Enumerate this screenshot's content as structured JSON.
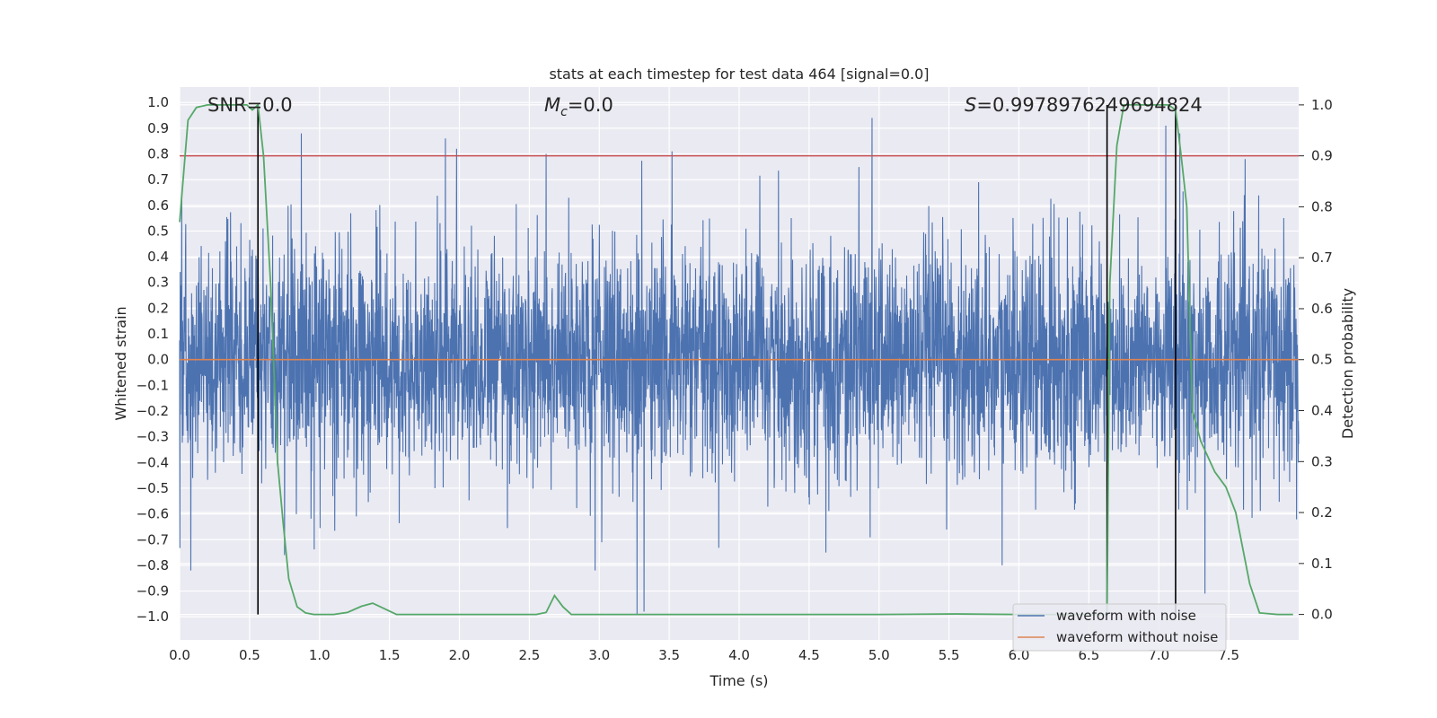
{
  "chart_data": {
    "type": "line",
    "title": "stats at each timestep for test data 464 [signal=0.0]",
    "xlabel": "Time (s)",
    "ylabel_left": "Whitened strain",
    "ylabel_right": "Detection probability",
    "xlim": [
      0.0,
      8.0
    ],
    "ylim_left": [
      -1.09,
      1.06
    ],
    "ylim_right": [
      -0.05,
      1.035
    ],
    "x_ticks": [
      "0.0",
      "0.5",
      "1.0",
      "1.5",
      "2.0",
      "2.5",
      "3.0",
      "3.5",
      "4.0",
      "4.5",
      "5.0",
      "5.5",
      "6.0",
      "6.5",
      "7.0",
      "7.5"
    ],
    "y_left_ticks": [
      "1.0",
      "0.9",
      "0.8",
      "0.7",
      "0.6",
      "0.5",
      "0.4",
      "0.3",
      "0.2",
      "0.1",
      "0.0",
      "−0.1",
      "−0.2",
      "−0.3",
      "−0.4",
      "−0.5",
      "−0.6",
      "−0.7",
      "−0.8",
      "−0.9",
      "−1.0"
    ],
    "y_right_ticks": [
      "1.0",
      "0.9",
      "0.8",
      "0.7",
      "0.6",
      "0.5",
      "0.4",
      "0.3",
      "0.2",
      "0.1",
      "0.0"
    ],
    "grid": true,
    "background": "#eaeaf2",
    "legend_placement": "lower-right",
    "annotations": {
      "snr": "SNR=0.0",
      "mc_symbol": "M",
      "mc_sub": "c",
      "mc_value": "=0.0",
      "s_symbol": "S",
      "s_value": "=0.9978976249694824"
    },
    "threshold": {
      "value": 0.9,
      "axis": "right",
      "color": "#c44e52"
    },
    "vertical_markers": [
      0.56,
      6.63,
      7.12
    ],
    "series": [
      {
        "name": "waveform with noise",
        "axis": "left",
        "color": "#4c72b0",
        "kind": "noise",
        "sigma": 0.22,
        "duration": 8.0,
        "spikes": [
          [
            0.87,
            0.88
          ],
          [
            1.9,
            0.86
          ],
          [
            1.98,
            0.82
          ],
          [
            2.62,
            0.8
          ],
          [
            3.52,
            0.81
          ],
          [
            4.95,
            0.94
          ],
          [
            7.05,
            0.91
          ],
          [
            7.15,
            0.88
          ],
          [
            3.27,
            -0.99
          ],
          [
            3.32,
            -0.98
          ],
          [
            2.97,
            -0.82
          ],
          [
            5.88,
            -0.8
          ],
          [
            7.33,
            -0.91
          ],
          [
            0.08,
            -0.82
          ],
          [
            0.75,
            -0.76
          ],
          [
            4.62,
            -0.75
          ]
        ]
      },
      {
        "name": "waveform without noise",
        "axis": "left",
        "color": "#dd8452",
        "values_x": [
          0.0,
          8.0
        ],
        "values_y": [
          0.0,
          0.0
        ]
      },
      {
        "name": "detection probability",
        "axis": "right",
        "color": "#55a868",
        "x": [
          0.0,
          0.06,
          0.12,
          0.2,
          0.3,
          0.4,
          0.48,
          0.52,
          0.56,
          0.6,
          0.65,
          0.7,
          0.74,
          0.78,
          0.84,
          0.9,
          0.96,
          1.02,
          1.1,
          1.2,
          1.3,
          1.38,
          1.45,
          1.55,
          1.7,
          2.0,
          2.3,
          2.55,
          2.62,
          2.68,
          2.74,
          2.8,
          2.9,
          3.2,
          4.0,
          5.0,
          5.55,
          6.0,
          6.4,
          6.6,
          6.63,
          6.65,
          6.7,
          6.75,
          6.8,
          7.0,
          7.07,
          7.12,
          7.16,
          7.2,
          7.24,
          7.3,
          7.4,
          7.48,
          7.55,
          7.6,
          7.65,
          7.72,
          7.85,
          7.96
        ],
        "y": [
          0.77,
          0.97,
          0.995,
          1.0,
          1.0,
          1.0,
          1.0,
          0.99,
          1.0,
          0.9,
          0.65,
          0.3,
          0.18,
          0.07,
          0.015,
          0.003,
          0.0,
          0.0,
          0.0,
          0.004,
          0.016,
          0.022,
          0.013,
          0.0,
          0.0,
          0.0,
          0.0,
          0.0,
          0.004,
          0.037,
          0.015,
          0.0,
          0.0,
          0.0,
          0.0,
          0.0,
          0.001,
          0.0,
          0.0,
          0.0,
          0.0,
          0.65,
          0.92,
          1.0,
          1.0,
          1.0,
          1.0,
          0.99,
          0.9,
          0.8,
          0.4,
          0.34,
          0.28,
          0.25,
          0.2,
          0.13,
          0.06,
          0.003,
          0.0,
          0.0
        ]
      }
    ]
  }
}
